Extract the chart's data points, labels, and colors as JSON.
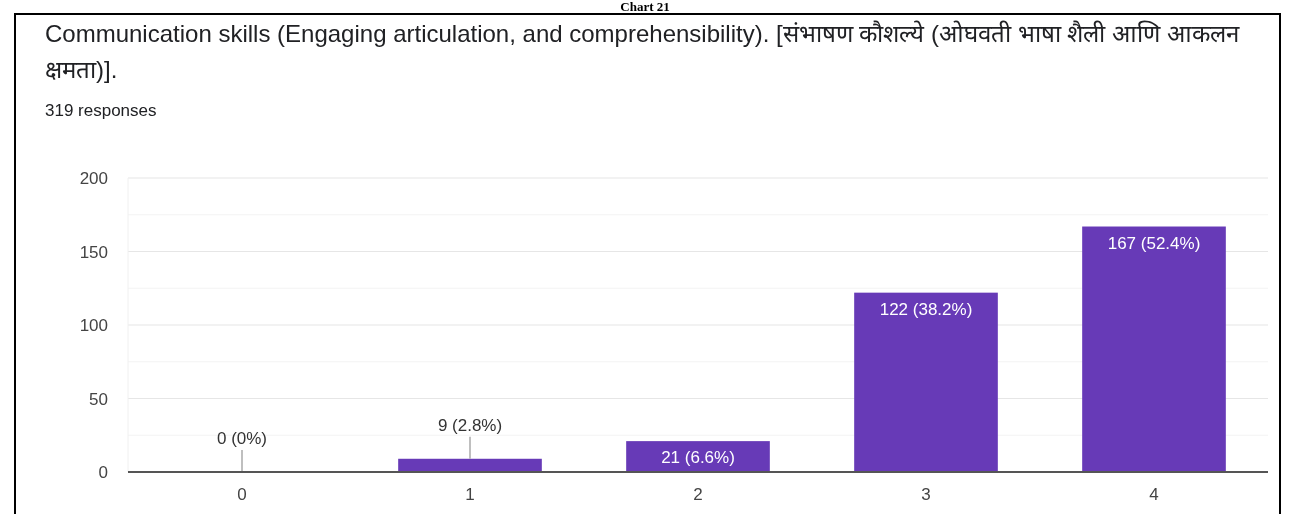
{
  "chart_data": {
    "type": "bar",
    "title": "Communication skills (Engaging articulation, and comprehensibility). [संभाषण कौशल्ये (ओघवती भाषा शैली आणि आकलन क्षमता)].",
    "subtitle": "319 responses",
    "annotations": [
      "Chart 21"
    ],
    "categories": [
      "0",
      "1",
      "2",
      "3",
      "4"
    ],
    "values": [
      0,
      9,
      21,
      122,
      167
    ],
    "value_labels": [
      "0 (0%)",
      "9 (2.8%)",
      "21 (6.6%)",
      "122 (38.2%)",
      "167 (52.4%)"
    ],
    "color": "#673ab7",
    "ylim": [
      0,
      200
    ],
    "yticks": [
      0,
      {
        "value": 25,
        "label": null
      },
      50,
      {
        "value": 75,
        "label": null
      },
      100,
      {
        "value": 125,
        "label": null
      },
      150,
      {
        "value": 175,
        "label": null
      },
      200
    ],
    "grid": "y"
  }
}
